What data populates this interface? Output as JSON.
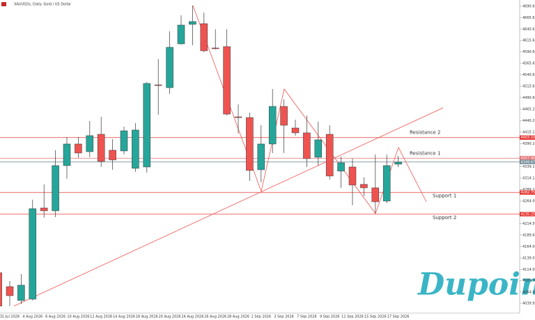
{
  "chart_data": {
    "type": "candlestick",
    "title": "XAUUSDs, Daily: Gold / US Dollar",
    "watermark": "Dupoin",
    "up_color": "#26a69a",
    "down_color": "#ef5350",
    "categories": [
      null,
      "31 Jul 2026",
      null,
      "4 Aug 2026",
      null,
      "6 Aug 2026",
      null,
      "10 Aug 2026",
      null,
      "12 Aug 2026",
      null,
      "14 Aug 2026",
      null,
      "18 Aug 2026",
      null,
      "20 Aug 2026",
      null,
      "24 Aug 2026",
      null,
      "26 Aug 2026",
      null,
      "28 Aug 2026",
      null,
      "1 Sep 2026",
      null,
      "3 Sep 2026",
      null,
      "7 Sep 2026",
      null,
      "9 Sep 2026",
      null,
      "11 Sep 2026",
      null,
      "15 Sep 2026",
      null,
      "17 Sep 2026"
    ],
    "open": [
      4107.1,
      4076.6,
      4046.2,
      4049.2,
      4248.8,
      4242.7,
      4341.7,
      4389.0,
      4372.2,
      4410.3,
      4375.3,
      4373.8,
      4335.7,
      4338.7,
      4518.5,
      4512.4,
      4608.4,
      4651.1,
      4652.6,
      4599.3,
      4602.3,
      4448.4,
      4446.9,
      4332.6,
      4389.0,
      4471.3,
      4424.0,
      4413.4,
      4360.0,
      4410.3,
      4329.6,
      4338.7,
      4300.6,
      4293.0,
      4264.0,
      4344.8
    ],
    "high": [
      4110.0,
      4088.8,
      4104.1,
      4267.1,
      4300.6,
      4375.3,
      4404.2,
      4404.2,
      4439.3,
      4448.4,
      4399.7,
      4427.1,
      4434.7,
      4524.6,
      4574.9,
      4635.8,
      4670.9,
      4692.2,
      4677.0,
      4640.4,
      4640.4,
      4475.8,
      4457.6,
      4430.1,
      4509.4,
      4486.5,
      4442.3,
      4451.5,
      4437.8,
      4430.1,
      4361.6,
      4357.0,
      4315.8,
      4366.1,
      4366.1,
      4363.0
    ],
    "low": [
      4021.8,
      4034.0,
      4038.5,
      4046.2,
      4227.5,
      4229.0,
      4312.8,
      4358.5,
      4360.0,
      4338.7,
      4332.6,
      4366.1,
      4328.0,
      4326.5,
      4453.0,
      4498.7,
      4606.9,
      4605.4,
      4590.1,
      4596.2,
      4451.5,
      4411.8,
      4308.3,
      4305.2,
      4369.2,
      4369.2,
      4407.3,
      4338.7,
      4341.7,
      4311.3,
      4293.0,
      4254.9,
      4274.7,
      4238.1,
      4259.5,
      4338.7
    ],
    "close": [
      4034.0,
      4056.8,
      4079.7,
      4247.3,
      4242.7,
      4341.7,
      4389.0,
      4369.2,
      4407.3,
      4350.9,
      4354.0,
      4417.9,
      4419.5,
      4521.6,
      4517.0,
      4600.8,
      4649.5,
      4657.2,
      4593.2,
      4597.7,
      4454.5,
      4446.9,
      4331.1,
      4389.0,
      4471.3,
      4430.1,
      4413.4,
      4357.0,
      4398.1,
      4318.9,
      4347.9,
      4299.1,
      4293.0,
      4262.5,
      4341.7,
      4349.4
    ],
    "ylim": [
      4018.7,
      4704.4
    ],
    "yticks": [
      {
        "value": 4690.65,
        "label": "4690.65"
      },
      {
        "value": 4665.65,
        "label": "4665.65"
      },
      {
        "value": 4640.65,
        "label": "4640.65"
      },
      {
        "value": 4615.65,
        "label": "4615.65"
      },
      {
        "value": 4590.65,
        "label": "4590.65"
      },
      {
        "value": 4565.65,
        "label": "4565.65"
      },
      {
        "value": 4540.65,
        "label": "4540.65"
      },
      {
        "value": 4515.65,
        "label": "4515.65"
      },
      {
        "value": 4490.6,
        "label": "4490.60"
      },
      {
        "value": 4465.2,
        "label": "4465.20"
      },
      {
        "value": 4440.2,
        "label": "4440.20"
      },
      {
        "value": 4415.15,
        "label": "4415.15"
      },
      {
        "value": 4390.1,
        "label": "4390.10"
      },
      {
        "value": 4339.15,
        "label": "4339.15"
      },
      {
        "value": 4314.15,
        "label": "4314.15"
      },
      {
        "value": 4289.1,
        "label": "4289.10"
      },
      {
        "value": 4264,
        "label": "4264.00"
      },
      {
        "value": 4214.5,
        "label": "4214.50"
      },
      {
        "value": 4189.65,
        "label": "4189.65"
      },
      {
        "value": 4164,
        "label": "4164.00"
      },
      {
        "value": 4139.05,
        "label": "4139.05"
      },
      {
        "value": 4114,
        "label": "4114.00"
      },
      {
        "value": 4089.95,
        "label": "4089.95"
      },
      {
        "value": 4064.6,
        "label": "4064.60"
      },
      {
        "value": 4039.95,
        "label": "4039.95"
      }
    ],
    "levels": [
      {
        "name": "Resistance 2",
        "value": 4403.1,
        "label": "4403.10",
        "color": "#e53935"
      },
      {
        "name": "Resistance 1",
        "value": 4357.9,
        "label": "4357.90",
        "color": "#e57373"
      },
      {
        "value": 4349.67,
        "label": "4349.67",
        "color": "#78909c"
      },
      {
        "name": "Support 1",
        "value": 4282.75,
        "label": "4282.75",
        "color": "#e53935"
      },
      {
        "name": "Support 2",
        "value": 4235.25,
        "label": "4235.25",
        "color": "#e53935"
      }
    ]
  }
}
